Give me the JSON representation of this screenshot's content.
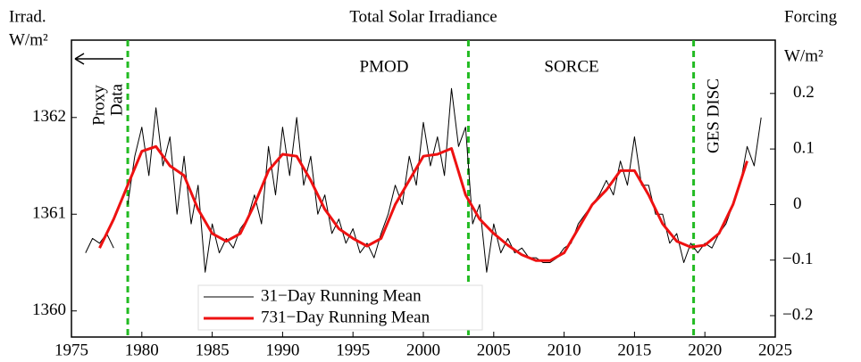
{
  "chart_data": {
    "type": "line",
    "title": "Total Solar Irradiance",
    "ylabel": [
      "Irrad.",
      "W/m²"
    ],
    "y2label": [
      "Forcing",
      "W/m²"
    ],
    "annotations": [
      "Proxy",
      "Data",
      "PMOD",
      "SORCE",
      "GES DISC"
    ],
    "vlines": [
      1979,
      2003.2,
      2019.2
    ],
    "vline_color": "#22bb22",
    "xlim": [
      1975,
      2025
    ],
    "xticks": [
      1975,
      1980,
      1985,
      1990,
      1995,
      2000,
      2005,
      2010,
      2015,
      2020,
      2025
    ],
    "ylim": [
      1359.73,
      1362.8
    ],
    "yticks": [
      1360,
      1361,
      1362
    ],
    "y2lim": [
      -0.2385,
      0.296
    ],
    "y2ticks": [
      {
        "value": -0.2,
        "label": "−0.2"
      },
      {
        "value": -0.1,
        "label": "−0.1"
      },
      0,
      0.1,
      0.2
    ],
    "legend": "lower left",
    "series": [
      {
        "name": "31−Day Running Mean",
        "color": "#000000",
        "width": 1,
        "x": [
          1976,
          1976.5,
          1977,
          1977.5,
          1978,
          1978.5,
          1979,
          1979.5,
          1980,
          1980.5,
          1981,
          1981.5,
          1982,
          1982.5,
          1983,
          1983.5,
          1984,
          1984.5,
          1985,
          1985.5,
          1986,
          1986.5,
          1987,
          1987.5,
          1988,
          1988.5,
          1989,
          1989.5,
          1990,
          1990.5,
          1991,
          1991.5,
          1992,
          1992.5,
          1993,
          1993.5,
          1994,
          1994.5,
          1995,
          1995.5,
          1996,
          1996.5,
          1997,
          1997.5,
          1998,
          1998.5,
          1999,
          1999.5,
          2000,
          2000.5,
          2001,
          2001.5,
          2002,
          2002.5,
          2003,
          2003.5,
          2004,
          2004.5,
          2005,
          2005.5,
          2006,
          2006.5,
          2007,
          2007.5,
          2008,
          2008.5,
          2009,
          2009.5,
          2010,
          2010.5,
          2011,
          2011.5,
          2012,
          2012.5,
          2013,
          2013.5,
          2014,
          2014.5,
          2015,
          2015.5,
          2016,
          2016.5,
          2017,
          2017.5,
          2018,
          2018.5,
          2019,
          2019.5,
          2020,
          2020.5,
          2021,
          2021.5,
          2022,
          2022.5,
          2023,
          2023.5,
          2024
        ],
        "values": [
          1360.6,
          1360.75,
          1360.7,
          1360.8,
          1360.65,
          null,
          1361.1,
          1361.6,
          1361.9,
          1361.4,
          1362.1,
          1361.5,
          1361.8,
          1361.0,
          1361.6,
          1360.9,
          1361.3,
          1360.4,
          1360.9,
          1360.6,
          1360.75,
          1360.65,
          1360.85,
          1360.95,
          1361.2,
          1360.9,
          1361.7,
          1361.2,
          1361.9,
          1361.4,
          1362.0,
          1361.3,
          1361.6,
          1361.0,
          1361.2,
          1360.8,
          1360.95,
          1360.7,
          1360.85,
          1360.6,
          1360.7,
          1360.55,
          1360.8,
          1361.0,
          1361.3,
          1361.1,
          1361.6,
          1361.3,
          1361.95,
          1361.5,
          1361.8,
          1361.4,
          1362.3,
          1361.7,
          1361.9,
          1360.9,
          1361.1,
          1360.4,
          1360.9,
          1360.6,
          1360.75,
          1360.6,
          1360.65,
          1360.55,
          1360.55,
          1360.5,
          1360.5,
          1360.55,
          1360.65,
          1360.7,
          1360.9,
          1361.0,
          1361.1,
          1361.2,
          1361.35,
          1361.2,
          1361.55,
          1361.3,
          1361.8,
          1361.3,
          1361.3,
          1361.0,
          1361.0,
          1360.7,
          1360.8,
          1360.5,
          1360.7,
          1360.6,
          1360.7,
          1360.65,
          1360.8,
          1360.9,
          1361.1,
          1361.3,
          1361.7,
          1361.5,
          1362.0
        ]
      },
      {
        "name": "731−Day Running Mean",
        "color": "#ee1111",
        "width": 3,
        "x": [
          1977,
          1978,
          1979,
          1980,
          1981,
          1982,
          1983,
          1984,
          1985,
          1986,
          1987,
          1988,
          1989,
          1990,
          1991,
          1992,
          1993,
          1994,
          1995,
          1996,
          1997,
          1998,
          1999,
          2000,
          2001,
          2002,
          2003,
          2004,
          2005,
          2006,
          2007,
          2008,
          2009,
          2010,
          2011,
          2012,
          2013,
          2014,
          2015,
          2016,
          2017,
          2018,
          2019,
          2020,
          2021,
          2022,
          2023
        ],
        "values": [
          1360.65,
          1360.95,
          1361.3,
          1361.65,
          1361.7,
          1361.5,
          1361.4,
          1361.05,
          1360.8,
          1360.72,
          1360.8,
          1361.1,
          1361.45,
          1361.62,
          1361.6,
          1361.35,
          1361.05,
          1360.85,
          1360.75,
          1360.67,
          1360.75,
          1361.1,
          1361.35,
          1361.6,
          1361.62,
          1361.68,
          1361.2,
          1360.95,
          1360.8,
          1360.68,
          1360.58,
          1360.52,
          1360.52,
          1360.6,
          1360.85,
          1361.1,
          1361.25,
          1361.45,
          1361.45,
          1361.2,
          1360.9,
          1360.72,
          1360.66,
          1360.68,
          1360.8,
          1361.1,
          1361.55
        ]
      }
    ]
  }
}
